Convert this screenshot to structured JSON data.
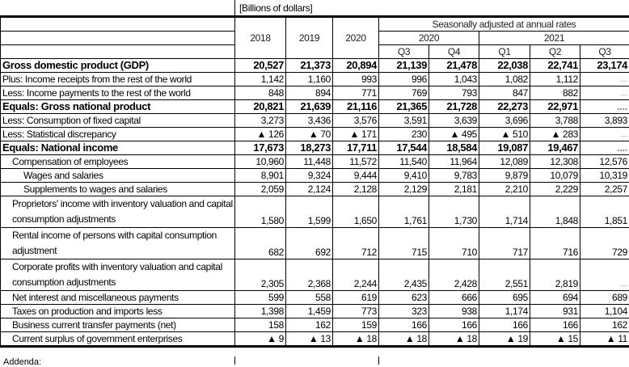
{
  "caption": "[Billions of dollars]",
  "header": {
    "annual_years": [
      "2018",
      "2019",
      "2020"
    ],
    "seasonal_label": "Seasonally adjusted at annual rates",
    "quarter_years": [
      {
        "label": "2020",
        "span": 2
      },
      {
        "label": "2021",
        "span": 3
      }
    ],
    "quarters": [
      "Q3",
      "Q4",
      "Q1",
      "Q2",
      "Q3"
    ]
  },
  "rows": [
    {
      "label": "Gross domestic product (GDP)",
      "bold": true,
      "indent": 0,
      "values": [
        "20,527",
        "21,373",
        "20,894",
        "21,139",
        "21,478",
        "22,038",
        "22,741",
        "23,174"
      ]
    },
    {
      "label": "Plus: Income receipts from the rest of the world",
      "indent": 0,
      "values": [
        "1,142",
        "1,160",
        "993",
        "996",
        "1,043",
        "1,082",
        "1,112",
        "...."
      ]
    },
    {
      "label": "Less: Income payments to the rest of the world",
      "indent": 0,
      "values": [
        "848",
        "894",
        "771",
        "769",
        "793",
        "847",
        "882",
        "...."
      ]
    },
    {
      "label": "Equals: Gross national product",
      "bold": true,
      "indent": 0,
      "values": [
        "20,821",
        "21,639",
        "21,116",
        "21,365",
        "21,728",
        "22,273",
        "22,971",
        "...."
      ]
    },
    {
      "label": "Less: Consumption of fixed capital",
      "indent": 0,
      "values": [
        "3,273",
        "3,436",
        "3,576",
        "3,591",
        "3,639",
        "3,696",
        "3,788",
        "3,893"
      ]
    },
    {
      "label": "Less: Statistical discrepancy",
      "indent": 0,
      "values": [
        "▲ 126",
        "▲ 70",
        "▲ 171",
        "230",
        "▲ 495",
        "▲ 510",
        "▲ 283",
        "...."
      ]
    },
    {
      "label": "Equals: National income",
      "bold": true,
      "indent": 0,
      "values": [
        "17,673",
        "18,273",
        "17,711",
        "17,544",
        "18,584",
        "19,087",
        "19,467",
        "...."
      ]
    },
    {
      "label": "Compensation of employees",
      "indent": 1,
      "values": [
        "10,960",
        "11,448",
        "11,572",
        "11,540",
        "11,964",
        "12,089",
        "12,308",
        "12,576"
      ]
    },
    {
      "label": "Wages and salaries",
      "indent": 2,
      "values": [
        "8,901",
        "9,324",
        "9,444",
        "9,410",
        "9,783",
        "9,879",
        "10,079",
        "10,319"
      ]
    },
    {
      "label": "Supplements to wages and salaries",
      "indent": 2,
      "values": [
        "2,059",
        "2,124",
        "2,128",
        "2,129",
        "2,181",
        "2,210",
        "2,229",
        "2,257"
      ]
    },
    {
      "label": "Proprietors' income with inventory valuation and capital consumption adjustments",
      "indent": 1,
      "tall": true,
      "values": [
        "1,580",
        "1,599",
        "1,650",
        "1,761",
        "1,730",
        "1,714",
        "1,848",
        "1,851"
      ]
    },
    {
      "label": "Rental income of persons with capital consumption adjustment",
      "indent": 1,
      "tall": true,
      "values": [
        "682",
        "692",
        "712",
        "715",
        "710",
        "717",
        "716",
        "729"
      ]
    },
    {
      "label": "Corporate profits with inventory valuation and capital consumption adjustments",
      "indent": 1,
      "tall": true,
      "values": [
        "2,305",
        "2,368",
        "2,244",
        "2,435",
        "2,428",
        "2,551",
        "2,819",
        "...."
      ]
    },
    {
      "label": "Net interest and miscellaneous payments",
      "indent": 1,
      "values": [
        "599",
        "558",
        "619",
        "623",
        "666",
        "695",
        "694",
        "689"
      ]
    },
    {
      "label": "Taxes on production and imports less",
      "indent": 1,
      "values": [
        "1,398",
        "1,459",
        "773",
        "323",
        "938",
        "1,174",
        "931",
        "1,104"
      ]
    },
    {
      "label": "Business current transfer payments (net)",
      "indent": 1,
      "values": [
        "158",
        "162",
        "159",
        "166",
        "166",
        "166",
        "166",
        "162"
      ]
    },
    {
      "label": "Current surplus of government enterprises",
      "indent": 1,
      "values": [
        "▲ 9",
        "▲ 13",
        "▲ 18",
        "▲ 18",
        "▲ 18",
        "▲ 19",
        "▲ 15",
        "▲ 11"
      ]
    }
  ],
  "footer_partial": "Addenda:"
}
